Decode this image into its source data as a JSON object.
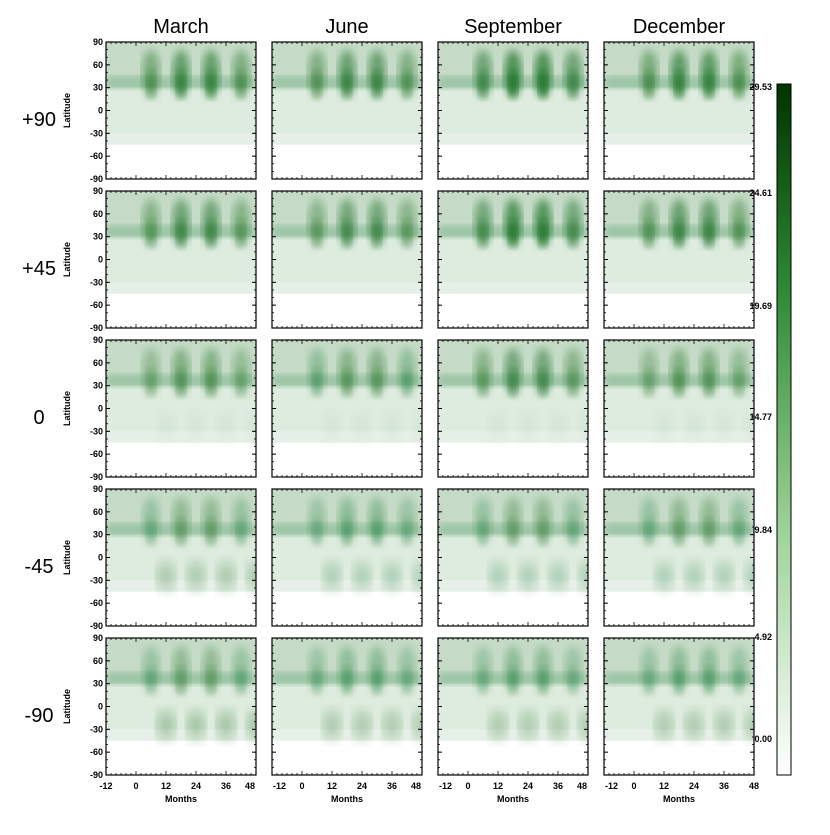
{
  "chart_data": {
    "type": "heatmap",
    "columns": [
      "March",
      "June",
      "September",
      "December"
    ],
    "rows": [
      "+90",
      "+45",
      "0",
      "-45",
      "-90"
    ],
    "ylabel": "Latitude",
    "xlabel": "Months",
    "x_ticks": [
      "-12",
      "0",
      "12",
      "24",
      "36",
      "48"
    ],
    "y_ticks": [
      "90",
      "60",
      "30",
      "0",
      "-30",
      "-60",
      "-90"
    ],
    "xlim": [
      -12,
      48
    ],
    "ylim": [
      -90,
      90
    ],
    "colorbar": {
      "ticks": [
        "29.53",
        "24.61",
        "19.69",
        "14.77",
        "9.84",
        "4.92",
        "0.00"
      ],
      "min": 0.0,
      "max": 29.53,
      "color_low": "#ffffff",
      "color_high": "#003300"
    },
    "peak_months": [
      3,
      15,
      27,
      39
    ],
    "peak_intensity": [
      [
        1.0,
        0.95,
        1.2,
        1.05
      ],
      [
        0.9,
        0.85,
        1.15,
        0.95
      ],
      [
        0.7,
        0.65,
        0.85,
        0.7
      ],
      [
        0.55,
        0.5,
        0.55,
        0.55
      ],
      [
        0.55,
        0.5,
        0.5,
        0.5
      ]
    ],
    "southern_peak": [
      [
        0.0,
        0.0,
        0.0,
        0.0
      ],
      [
        0.0,
        0.0,
        0.0,
        0.0
      ],
      [
        0.05,
        0.05,
        0.05,
        0.05
      ],
      [
        0.3,
        0.25,
        0.25,
        0.25
      ],
      [
        0.35,
        0.3,
        0.3,
        0.3
      ]
    ]
  }
}
